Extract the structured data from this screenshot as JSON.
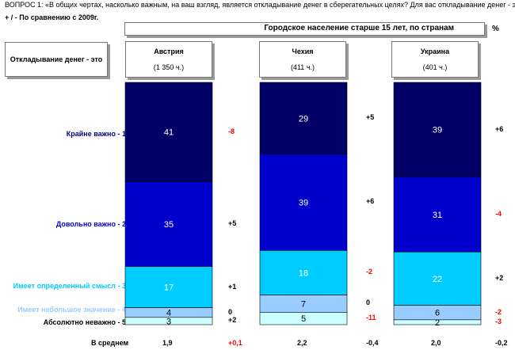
{
  "header": {
    "question": "ВОПРОС 1:    «В общих чертах, насколько важным, на ваш взгляд, является откладывание денег в сберегательных целях? Для вас откладывание денег - это",
    "comparison_note": "+ / - По сравнению с 2009г.",
    "subtitle": "Городское население старше 15 лет, по странам",
    "percent_sign": "%",
    "measure_label": "Откладывание денег - это"
  },
  "average_label": "В среднем",
  "colors": {
    "cat1": "#000066",
    "cat2": "#0000cc",
    "cat3": "#00ccff",
    "cat4": "#99ccff",
    "cat5": "#ccffff",
    "label1": "#000080",
    "label2": "#0000cc",
    "label3": "#00ccff",
    "label4": "#99ccff",
    "label5": "#000000",
    "positive_change": "#000000",
    "negative_change": "#ff0000"
  },
  "chart_data": {
    "type": "bar",
    "stacked": true,
    "unit": "%",
    "categories": [
      "Австрия",
      "Чехия",
      "Украина"
    ],
    "category_notes": [
      "(1 350 ч.)",
      "(411 ч.)",
      "(401 ч.)"
    ],
    "series": [
      {
        "name": "Крайне важно - 1",
        "values": [
          41,
          29,
          39
        ],
        "value_labels": [
          "41",
          "29",
          "39"
        ],
        "changes": [
          "-8",
          "+5",
          "+6"
        ]
      },
      {
        "name": "Довольно важно - 2",
        "values": [
          35,
          39,
          31
        ],
        "value_labels": [
          "35",
          "39",
          "31"
        ],
        "changes": [
          "+5",
          "+6",
          "-4"
        ]
      },
      {
        "name": "Имеет определенный смысл - 3",
        "values": [
          17,
          18,
          22
        ],
        "value_labels": [
          "17",
          "18",
          "22"
        ],
        "changes": [
          "+1",
          "-2",
          "+2"
        ]
      },
      {
        "name": "Имеет небольшое значение - 4",
        "values": [
          4,
          7,
          6
        ],
        "value_labels": [
          "4",
          "7",
          "6"
        ],
        "changes": [
          "0",
          "0",
          "-2"
        ]
      },
      {
        "name": "Абсолютно неважно - 5",
        "values": [
          3,
          5,
          2
        ],
        "value_labels": [
          "3",
          "5",
          "2"
        ],
        "changes": [
          "+2",
          "-11",
          "-3"
        ]
      }
    ],
    "averages": [
      "1,9",
      "2,2",
      "2,0"
    ],
    "average_changes": [
      "+0,1",
      "-0,4",
      "-0,2"
    ]
  }
}
